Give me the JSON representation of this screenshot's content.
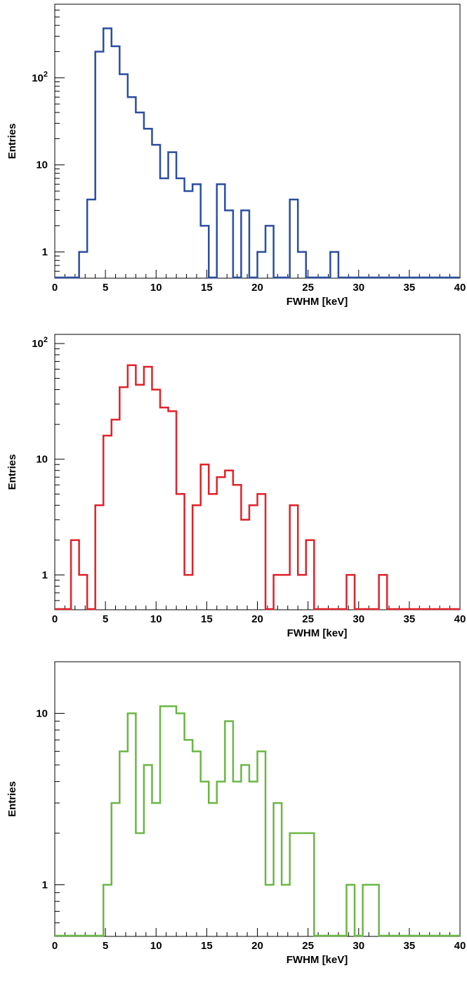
{
  "chart_data": [
    {
      "type": "histogram",
      "color": "#2b4ea0",
      "xlabel": "FWHM [keV]",
      "ylabel": "Entries",
      "xlim": [
        0,
        40
      ],
      "ylim": [
        0.5,
        700
      ],
      "yscale": "log",
      "bin_width": 0.8,
      "bin_edges_start": 0,
      "values": [
        0,
        0,
        0,
        1,
        4,
        200,
        370,
        230,
        110,
        60,
        40,
        26,
        17,
        7,
        14,
        7,
        5,
        6,
        2,
        0,
        6,
        3,
        0,
        3,
        0,
        1,
        2,
        0,
        0,
        4,
        1,
        0,
        0,
        0,
        1,
        0,
        0,
        0,
        0,
        0,
        0,
        0,
        0,
        0,
        0,
        0,
        0,
        0,
        0,
        0
      ],
      "x_ticks": [
        0,
        5,
        10,
        15,
        20,
        25,
        30,
        35,
        40
      ],
      "x_tick_labels": [
        "0",
        "5",
        "10",
        "15",
        "20",
        "25",
        "30",
        "35",
        "40"
      ],
      "y_ticks": [
        1,
        10,
        100
      ],
      "y_tick_labels": [
        "1",
        "10",
        "10²"
      ]
    },
    {
      "type": "histogram",
      "color": "#e0222a",
      "xlabel": "FWHM [kev]",
      "ylabel": "Entries",
      "xlim": [
        0,
        40
      ],
      "ylim": [
        0.5,
        120
      ],
      "yscale": "log",
      "bin_width": 0.8,
      "bin_edges_start": 0,
      "values": [
        0,
        0,
        2,
        1,
        0,
        4,
        16,
        22,
        42,
        65,
        44,
        63,
        40,
        28,
        26,
        5,
        1,
        4,
        9,
        5,
        7,
        8,
        6,
        3,
        4,
        5,
        0,
        1,
        1,
        4,
        1,
        2,
        0,
        0,
        0,
        0,
        1,
        0,
        0,
        0,
        1,
        0,
        0,
        0,
        0,
        0,
        0,
        0,
        0,
        0
      ],
      "x_ticks": [
        0,
        5,
        10,
        15,
        20,
        25,
        30,
        35,
        40
      ],
      "x_tick_labels": [
        "0",
        "5",
        "10",
        "15",
        "20",
        "25",
        "30",
        "35",
        "40"
      ],
      "y_ticks": [
        1,
        10,
        100
      ],
      "y_tick_labels": [
        "1",
        "10",
        "10²"
      ]
    },
    {
      "type": "histogram",
      "color": "#6ab745",
      "xlabel": "FWHM [keV]",
      "ylabel": "Entries",
      "xlim": [
        0,
        40
      ],
      "ylim": [
        0.5,
        20
      ],
      "yscale": "log",
      "bin_width": 0.8,
      "bin_edges_start": 0,
      "values": [
        0,
        0,
        0,
        0,
        0,
        0,
        1,
        3,
        6,
        10,
        2,
        5,
        3,
        11,
        11,
        10,
        7,
        6,
        4,
        3,
        4,
        9,
        4,
        5,
        4,
        6,
        1,
        3,
        1,
        2,
        2,
        2,
        0,
        0,
        0,
        0,
        1,
        0,
        1,
        1,
        0,
        0,
        0,
        0,
        0,
        0,
        0,
        0,
        0,
        0
      ],
      "x_ticks": [
        0,
        5,
        10,
        15,
        20,
        25,
        30,
        35,
        40
      ],
      "x_tick_labels": [
        "0",
        "5",
        "10",
        "15",
        "20",
        "25",
        "30",
        "35",
        "40"
      ],
      "y_ticks": [
        1,
        10
      ],
      "y_tick_labels": [
        "1",
        "10"
      ]
    }
  ]
}
